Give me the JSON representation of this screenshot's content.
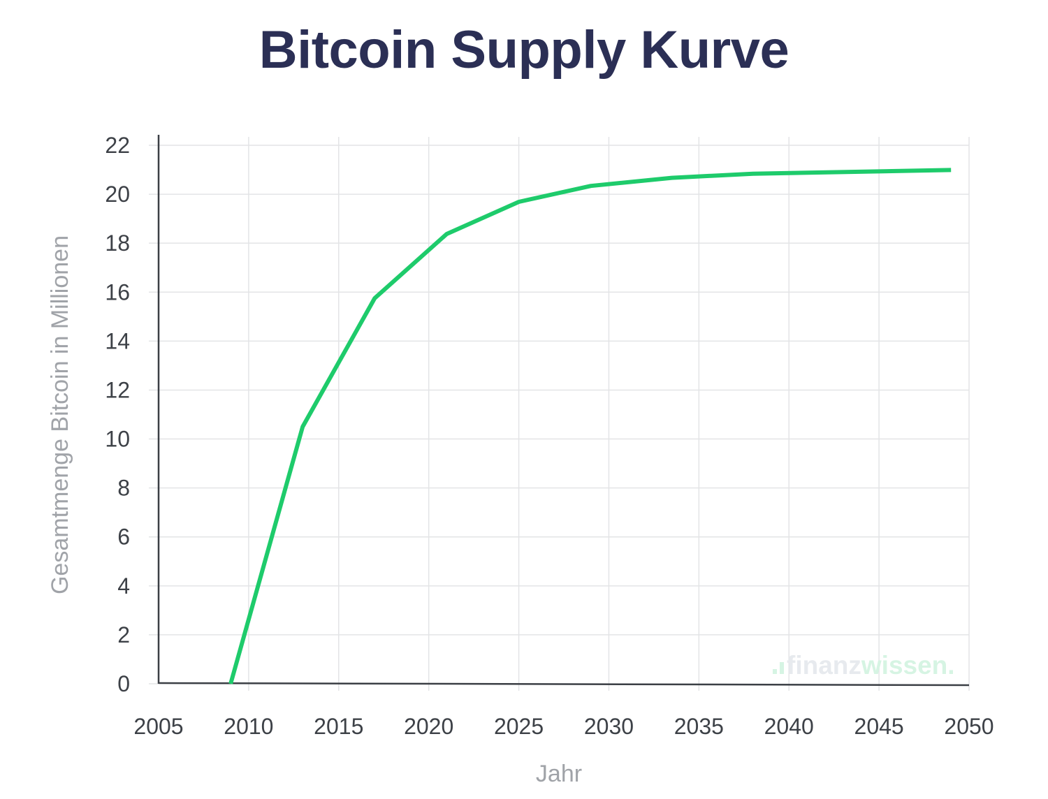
{
  "chart_data": {
    "type": "line",
    "title": "Bitcoin Supply Kurve",
    "xlabel": "Jahr",
    "ylabel": "Gesamtmenge Bitcoin in Millionen",
    "xlim": [
      2005,
      2050
    ],
    "ylim": [
      0,
      22
    ],
    "x_ticks": [
      2005,
      2010,
      2015,
      2020,
      2025,
      2030,
      2035,
      2040,
      2045,
      2050
    ],
    "y_ticks": [
      0,
      2,
      4,
      6,
      8,
      10,
      12,
      14,
      16,
      18,
      20,
      22
    ],
    "grid": true,
    "legend": "none",
    "series": [
      {
        "color": "#1ecb6b",
        "x": [
          2009,
          2013,
          2017,
          2021,
          2025,
          2029,
          2033.5,
          2038,
          2049
        ],
        "y": [
          0,
          10.5,
          15.75,
          18.375,
          19.69,
          20.34,
          20.67,
          20.84,
          20.99
        ]
      }
    ]
  },
  "watermark": {
    "part1": "finanz",
    "part2": "wissen."
  },
  "colors": {
    "title": "#2b2f55",
    "line": "#1ecb6b",
    "grid": "#e3e4e6",
    "axis": "#3b3f45"
  }
}
